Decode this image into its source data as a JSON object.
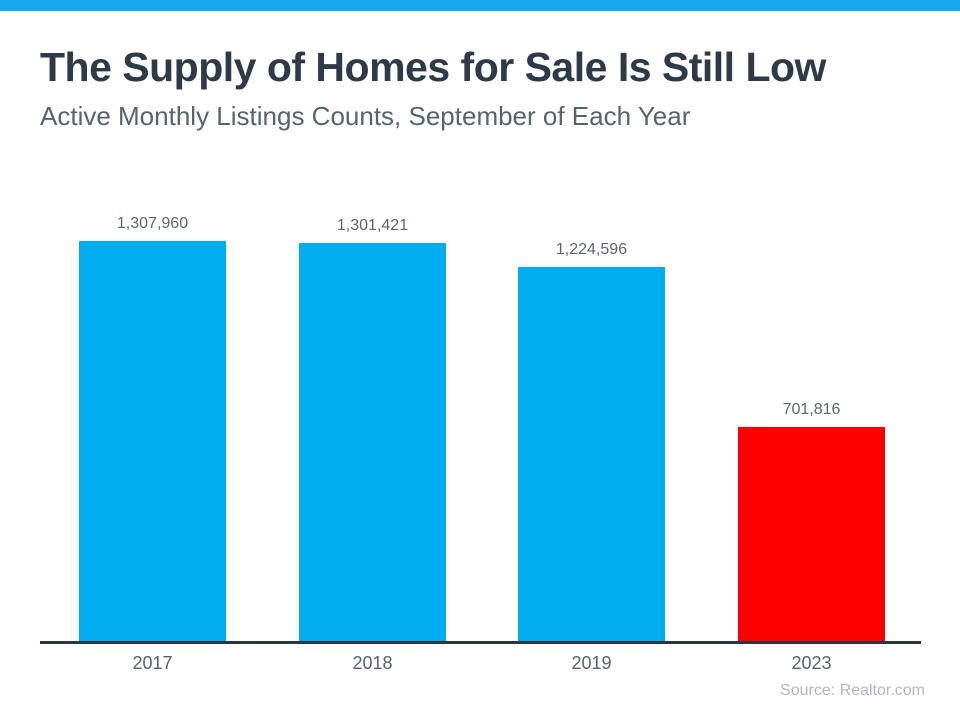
{
  "page": {
    "background": "#ffffff",
    "accent_bar_color": "#18A8EC"
  },
  "header": {
    "title": "The Supply of Homes for Sale Is Still Low",
    "subtitle": "Active Monthly Listings Counts, September of Each Year",
    "title_color": "#2E3A48",
    "subtitle_color": "#56646F"
  },
  "footer": {
    "source": "Source: Realtor.com",
    "source_color": "#AFB9C1"
  },
  "chart_data": {
    "type": "bar",
    "title": "The Supply of Homes for Sale Is Still Low",
    "subtitle": "Active Monthly Listings Counts, September of Each Year",
    "categories": [
      "2017",
      "2018",
      "2019",
      "2023"
    ],
    "values": [
      1307960,
      1301421,
      1224596,
      701816
    ],
    "value_labels": [
      "1,307,960",
      "1,301,421",
      "1,224,596",
      "701,816"
    ],
    "bar_colors": [
      "#00ADEF",
      "#00ADEF",
      "#00ADEF",
      "#FF0000"
    ],
    "xlabel": "",
    "ylabel": "",
    "ylim": [
      0,
      1307960
    ],
    "grid": false,
    "legend": false,
    "y_axis_visible": false,
    "x_axis_line_color": "#2A3642",
    "value_label_color": "#5B6771",
    "tick_label_color": "#57646F",
    "source": "Source: Realtor.com"
  }
}
